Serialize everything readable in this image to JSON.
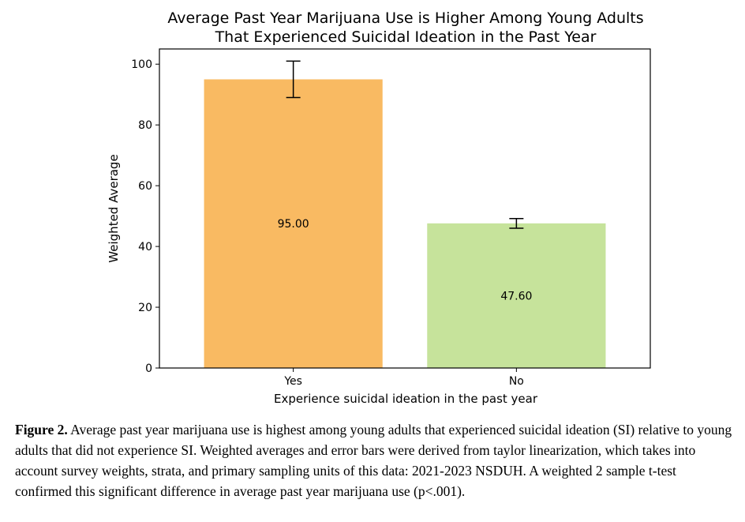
{
  "chart_data": {
    "type": "bar",
    "title": [
      "Average Past Year Marijuana Use is Higher Among Young Adults",
      "That Experienced Suicidal Ideation in the Past Year"
    ],
    "xlabel": "Experience suicidal ideation in the past year",
    "ylabel": "Weighted Average",
    "categories": [
      "Yes",
      "No"
    ],
    "values": [
      95.0,
      47.6
    ],
    "value_labels": [
      "95.00",
      "47.60"
    ],
    "error_low": [
      89.0,
      46.0
    ],
    "error_high": [
      101.0,
      49.2
    ],
    "colors": [
      "#f9ba62",
      "#c6e39b"
    ],
    "ylim": [
      0,
      105
    ],
    "yticks": [
      0,
      20,
      40,
      60,
      80,
      100
    ],
    "grid": false
  },
  "caption": {
    "label": "Figure 2.",
    "text": " Average past year marijuana use is highest among young adults that experienced suicidal ideation (SI) relative to young adults that did not experience SI. Weighted averages and error bars were derived from taylor linearization, which takes into account survey weights, strata, and primary sampling units of this data: 2021-2023 NSDUH. A weighted 2 sample t-test confirmed this significant difference in average past year marijuana use (p<.001)."
  }
}
